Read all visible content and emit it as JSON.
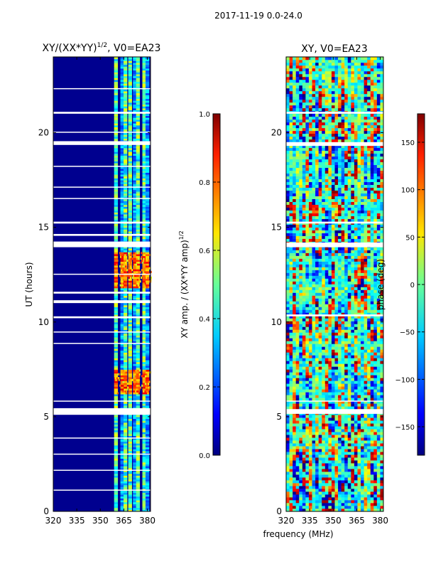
{
  "figure_title": "2017-11-19 0.0-24.0",
  "shared_xlabel": "frequency (MHz)",
  "colors": {
    "background": "#ffffff",
    "gap_white": "#ffffff",
    "low_amp": "#00008f"
  },
  "chart_data": [
    {
      "type": "heatmap",
      "title": "XY/(XX*YY)^1/2, V0=EA23",
      "title_main": "XY/(XX*YY)",
      "title_sup": "1/2",
      "title_tail": ", V0=EA23",
      "xlabel": "",
      "ylabel": "UT (hours)",
      "xlim": [
        320,
        382
      ],
      "ylim": [
        0,
        24
      ],
      "x_ticks": [
        320,
        335,
        350,
        365,
        380
      ],
      "x_tick_labels": [
        "320",
        "335",
        "350",
        "365",
        "380"
      ],
      "y_ticks": [
        0,
        5,
        10,
        15,
        20
      ],
      "y_tick_labels": [
        "0",
        "5",
        "10",
        "15",
        "20"
      ],
      "colorbar": {
        "label": "XY amp. / (XX*YY amp)^1/2",
        "label_main": "XY amp. / (XX*YY amp)",
        "label_sup": "1/2",
        "range": [
          0.0,
          1.0
        ],
        "ticks": [
          0.0,
          0.2,
          0.4,
          0.6,
          0.8,
          1.0
        ],
        "tick_labels": [
          "0.0",
          "0.2",
          "0.4",
          "0.6",
          "0.8",
          "1.0"
        ],
        "colormap": "jet"
      },
      "channel_stripes_mhz": [
        360,
        364,
        366,
        369,
        372,
        374,
        378,
        380
      ],
      "baseline_value": 0.02,
      "stripe_value_typical": 0.45,
      "high_value_band_hours": [
        [
          6.2,
          7.4
        ],
        [
          11.8,
          13.6
        ]
      ],
      "high_value": 0.78,
      "data_gaps_hours": [
        [
          1.1,
          1.15
        ],
        [
          2.15,
          2.2
        ],
        [
          3.0,
          3.05
        ],
        [
          3.85,
          3.9
        ],
        [
          5.1,
          5.45
        ],
        [
          5.8,
          5.85
        ],
        [
          8.85,
          8.9
        ],
        [
          9.45,
          9.5
        ],
        [
          10.2,
          10.3
        ],
        [
          11.0,
          11.15
        ],
        [
          11.5,
          11.6
        ],
        [
          12.5,
          12.55
        ],
        [
          13.95,
          14.25
        ],
        [
          14.55,
          14.65
        ],
        [
          15.2,
          15.3
        ],
        [
          16.5,
          16.55
        ],
        [
          17.1,
          17.15
        ],
        [
          18.2,
          18.25
        ],
        [
          19.35,
          19.55
        ],
        [
          20.0,
          20.05
        ],
        [
          21.0,
          21.1
        ],
        [
          22.3,
          22.35
        ]
      ]
    },
    {
      "type": "heatmap",
      "title": "XY, V0=EA23",
      "xlabel": "frequency (MHz)",
      "ylabel": "",
      "xlim": [
        320,
        382
      ],
      "ylim": [
        0,
        24
      ],
      "x_ticks": [
        320,
        335,
        350,
        365,
        380
      ],
      "x_tick_labels": [
        "320",
        "335",
        "350",
        "365",
        "380"
      ],
      "y_ticks": [
        0,
        5,
        10,
        15,
        20
      ],
      "y_tick_labels": [
        "0",
        "5",
        "10",
        "15",
        "20"
      ],
      "colorbar": {
        "label": "phase (deg)",
        "range": [
          -180,
          180
        ],
        "ticks": [
          -150,
          -100,
          -50,
          0,
          50,
          100,
          150
        ],
        "tick_labels": [
          "−150",
          "−100",
          "−50",
          "0",
          "50",
          "100",
          "150"
        ],
        "colormap": "jet"
      },
      "value_distribution": "broadband phase spread over full range, green-cyan dominated mid-band",
      "data_gaps_hours": [
        [
          5.15,
          5.4
        ],
        [
          5.8,
          5.85
        ],
        [
          10.3,
          10.4
        ],
        [
          13.95,
          14.2
        ],
        [
          15.2,
          15.3
        ],
        [
          19.3,
          19.5
        ],
        [
          21.0,
          21.1
        ]
      ]
    }
  ]
}
